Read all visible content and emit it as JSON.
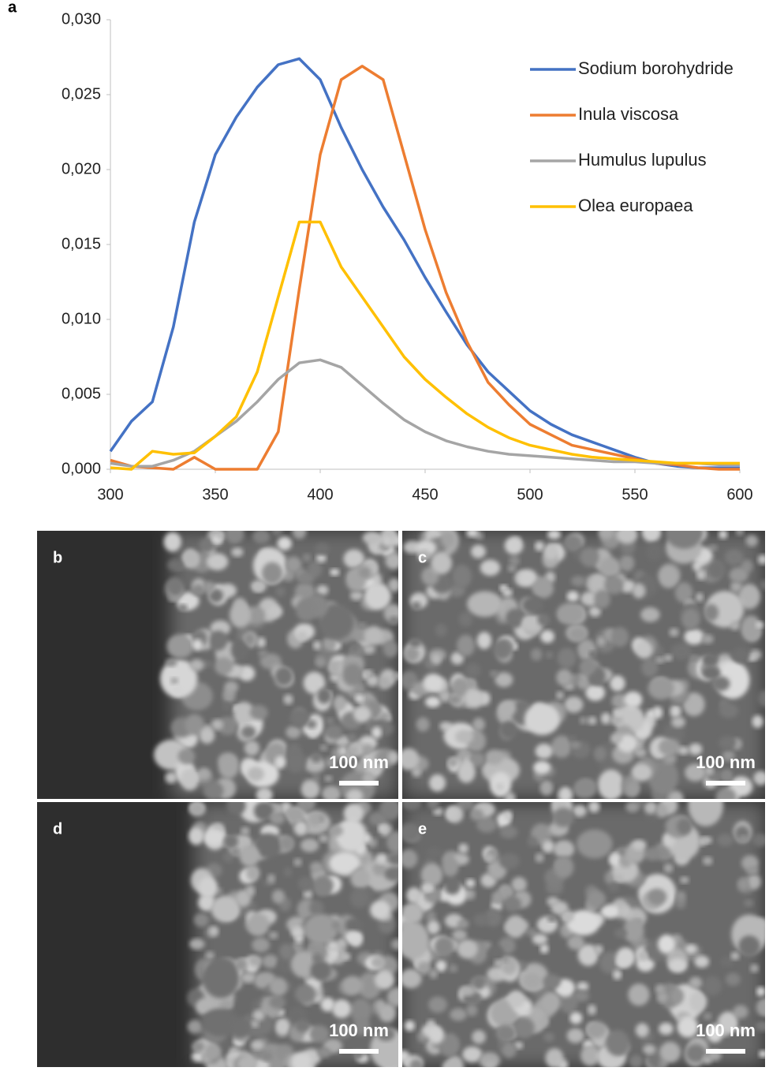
{
  "chart_data": {
    "type": "line",
    "panel_label": "a",
    "x": [
      300,
      310,
      320,
      330,
      340,
      350,
      360,
      370,
      380,
      390,
      400,
      410,
      420,
      430,
      440,
      450,
      460,
      470,
      480,
      490,
      500,
      510,
      520,
      530,
      540,
      550,
      560,
      570,
      580,
      590,
      600
    ],
    "series": [
      {
        "name": "Sodium borohydride",
        "color": "#4472c4",
        "values": [
          0.0012,
          0.0032,
          0.0045,
          0.0095,
          0.0165,
          0.021,
          0.0235,
          0.0255,
          0.027,
          0.0274,
          0.026,
          0.0228,
          0.02,
          0.0175,
          0.0153,
          0.0128,
          0.0105,
          0.0083,
          0.0065,
          0.0052,
          0.0039,
          0.003,
          0.0023,
          0.0018,
          0.0013,
          0.0008,
          0.0004,
          0.0002,
          0.0001,
          0.0001,
          0.0001
        ]
      },
      {
        "name": "Inula viscosa",
        "color": "#ed7d31",
        "values": [
          0.0006,
          0.0002,
          0.0001,
          0,
          0.0008,
          0,
          0,
          0,
          0.0025,
          0.012,
          0.021,
          0.026,
          0.0269,
          0.026,
          0.021,
          0.016,
          0.0118,
          0.0085,
          0.0058,
          0.0043,
          0.003,
          0.0023,
          0.0016,
          0.0013,
          0.001,
          0.0007,
          0.0004,
          0.0003,
          0.0001,
          0,
          0
        ]
      },
      {
        "name": "Humulus lupulus",
        "color": "#a5a5a5",
        "values": [
          0.0004,
          0.0002,
          0.0002,
          0.0006,
          0.0012,
          0.0022,
          0.0032,
          0.0045,
          0.006,
          0.0071,
          0.0073,
          0.0068,
          0.0056,
          0.0044,
          0.0033,
          0.0025,
          0.0019,
          0.0015,
          0.0012,
          0.001,
          0.0009,
          0.0008,
          0.0007,
          0.0006,
          0.0005,
          0.0005,
          0.0004,
          0.0004,
          0.0004,
          0.0003,
          0.0003
        ]
      },
      {
        "name": "Olea europaea",
        "color": "#ffc000",
        "values": [
          0.0001,
          0,
          0.0012,
          0.001,
          0.0011,
          0.0022,
          0.0035,
          0.0065,
          0.0115,
          0.0165,
          0.0165,
          0.0135,
          0.0115,
          0.0095,
          0.0075,
          0.006,
          0.0048,
          0.0037,
          0.0028,
          0.0021,
          0.0016,
          0.0013,
          0.001,
          0.0008,
          0.0007,
          0.0006,
          0.0005,
          0.0004,
          0.0004,
          0.0004,
          0.0004
        ]
      }
    ],
    "xlim": [
      300,
      600
    ],
    "xticks": [
      300,
      350,
      400,
      450,
      500,
      550,
      600
    ],
    "ylim": [
      0,
      0.03
    ],
    "yticks": [
      {
        "value": 0,
        "label": "0,000"
      },
      {
        "value": 0.005,
        "label": "0,005"
      },
      {
        "value": 0.01,
        "label": "0,010"
      },
      {
        "value": 0.015,
        "label": "0,015"
      },
      {
        "value": 0.02,
        "label": "0,020"
      },
      {
        "value": 0.025,
        "label": "0,025"
      },
      {
        "value": 0.03,
        "label": "0,030"
      }
    ],
    "grid": false,
    "legend": "upper right"
  },
  "images": [
    {
      "label": "b",
      "scale": "100 nm"
    },
    {
      "label": "c",
      "scale": "100 nm"
    },
    {
      "label": "d",
      "scale": "100 nm"
    },
    {
      "label": "e",
      "scale": "100 nm"
    }
  ]
}
